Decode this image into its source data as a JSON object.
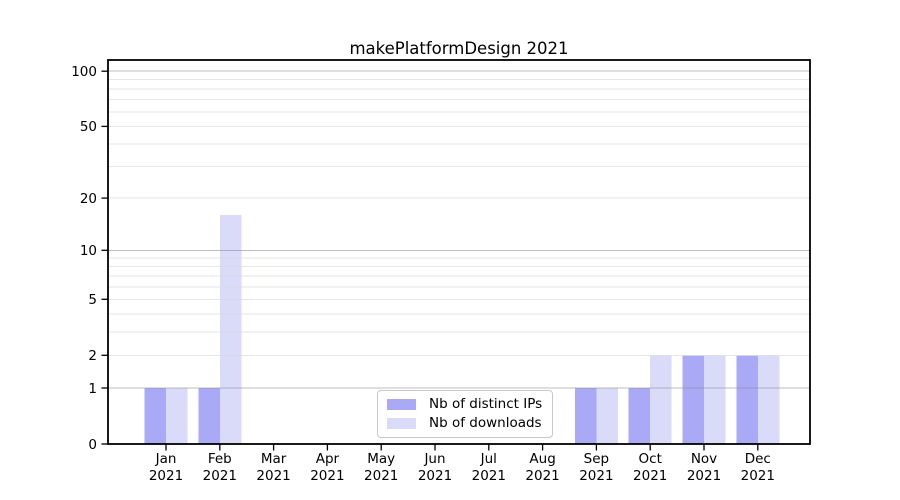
{
  "chart_data": {
    "type": "bar",
    "title": "makePlatformDesign 2021",
    "x": {
      "months": [
        "Jan",
        "Feb",
        "Mar",
        "Apr",
        "May",
        "Jun",
        "Jul",
        "Aug",
        "Sep",
        "Oct",
        "Nov",
        "Dec"
      ],
      "year": "2021"
    },
    "series": [
      {
        "name": "Nb of distinct IPs",
        "color": "#a9a9f5",
        "values": [
          1,
          1,
          0,
          0,
          0,
          0,
          0,
          0,
          1,
          1,
          2,
          2
        ]
      },
      {
        "name": "Nb of downloads",
        "color": "#dadaf9",
        "values": [
          1,
          16,
          0,
          0,
          0,
          0,
          0,
          0,
          1,
          2,
          2,
          2
        ]
      }
    ],
    "yscale": "log1p",
    "ylim": [
      0,
      115
    ],
    "y_ticks": [
      0,
      1,
      2,
      5,
      10,
      20,
      50,
      100
    ],
    "y_major_gridlines": [
      1,
      10,
      100
    ],
    "y_minor_gridlines": [
      2,
      3,
      4,
      5,
      6,
      7,
      8,
      9,
      20,
      30,
      40,
      50,
      60,
      70,
      80,
      90
    ],
    "grid": true,
    "legend_position": "lower center"
  },
  "colors": {
    "grid_major": "#8f8f8f",
    "grid_minor": "#d8d8d8",
    "spine": "#000000",
    "tick": "#000000",
    "text": "#000000",
    "legend_border": "#c8c8c8",
    "background": "#ffffff"
  }
}
